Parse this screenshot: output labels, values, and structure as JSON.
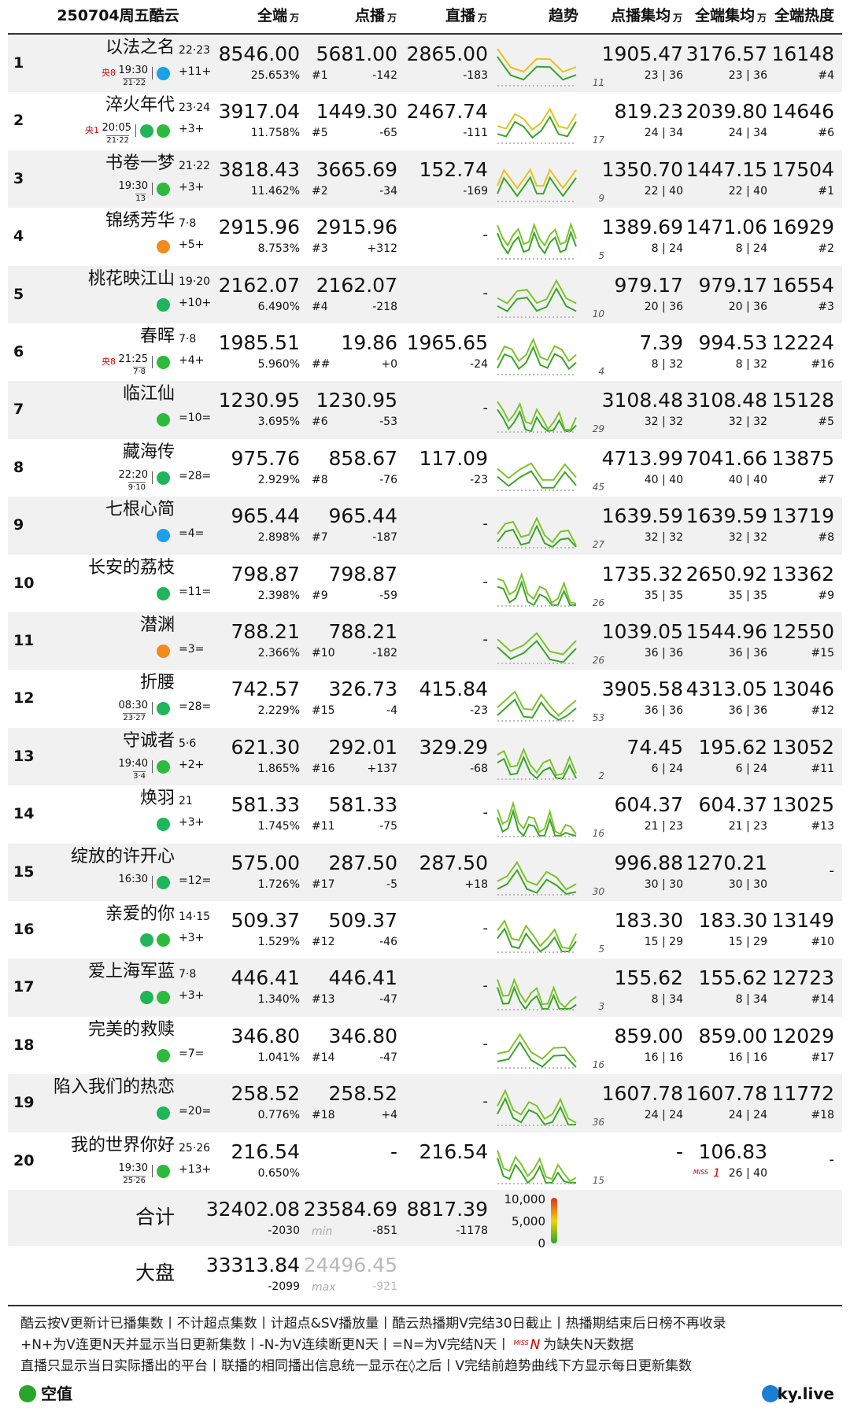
{
  "header": {
    "date": "250704周五酷云",
    "cols": [
      {
        "label": "全端",
        "unit": "万"
      },
      {
        "label": "点播",
        "unit": "万"
      },
      {
        "label": "直播",
        "unit": "万"
      },
      {
        "label": "趋势"
      },
      {
        "label": "点播集均",
        "unit": "万"
      },
      {
        "label": "全端集均",
        "unit": "万"
      },
      {
        "label": "全端热度"
      }
    ]
  },
  "rows": [
    {
      "rank": "1",
      "name": "以法之名",
      "ep": "22·23",
      "channel": "央8",
      "time": "19:30",
      "sub": "21·22",
      "update": "+11+",
      "all": "8546.00",
      "share": "25.653%",
      "vod": "5681.00",
      "vod_rank": "#1",
      "vod_chg": "-142",
      "live": "2865.00",
      "live_chg": "-183",
      "trend_n": "11",
      "vod_avg": "1905.47",
      "vod_eps": "23 | 36",
      "all_avg": "3176.57",
      "all_eps": "23 | 36",
      "heat": "16148",
      "heat_rank": "#4"
    },
    {
      "rank": "2",
      "name": "淬火年代",
      "ep": "23·24",
      "channel": "央1",
      "time": "20:05",
      "sub": "21·22",
      "update": "+3+",
      "all": "3917.04",
      "share": "11.758%",
      "vod": "1449.30",
      "vod_rank": "#5",
      "vod_chg": "-65",
      "live": "2467.74",
      "live_chg": "-111",
      "trend_n": "17",
      "vod_avg": "819.23",
      "vod_eps": "24 | 34",
      "all_avg": "2039.80",
      "all_eps": "24 | 34",
      "heat": "14646",
      "heat_rank": "#6"
    },
    {
      "rank": "3",
      "name": "书卷一梦",
      "ep": "21·22",
      "time": "19:30",
      "sub": "13",
      "update": "+3+",
      "all": "3818.43",
      "share": "11.462%",
      "vod": "3665.69",
      "vod_rank": "#2",
      "vod_chg": "-34",
      "live": "152.74",
      "live_chg": "-169",
      "trend_n": "9",
      "vod_avg": "1350.70",
      "vod_eps": "22 | 40",
      "all_avg": "1447.15",
      "all_eps": "22 | 40",
      "heat": "17504",
      "heat_rank": "#1"
    },
    {
      "rank": "4",
      "name": "锦绣芳华",
      "ep": "7·8",
      "update": "+5+",
      "all": "2915.96",
      "share": "8.753%",
      "vod": "2915.96",
      "vod_rank": "#3",
      "vod_chg": "+312",
      "live": "-",
      "trend_n": "5",
      "vod_avg": "1389.69",
      "vod_eps": "8 | 24",
      "all_avg": "1471.06",
      "all_eps": "8 | 24",
      "heat": "16929",
      "heat_rank": "#2"
    },
    {
      "rank": "5",
      "name": "桃花映江山",
      "ep": "19·20",
      "update": "+10+",
      "all": "2162.07",
      "share": "6.490%",
      "vod": "2162.07",
      "vod_rank": "#4",
      "vod_chg": "-218",
      "live": "-",
      "trend_n": "10",
      "vod_avg": "979.17",
      "vod_eps": "20 | 36",
      "all_avg": "979.17",
      "all_eps": "20 | 36",
      "heat": "16554",
      "heat_rank": "#3"
    },
    {
      "rank": "6",
      "name": "春晖",
      "ep": "7·8",
      "channel": "央8",
      "time": "21:25",
      "sub": "7·8",
      "update": "+4+",
      "all": "1985.51",
      "share": "5.960%",
      "vod": "19.86",
      "vod_rank": "##",
      "vod_chg": "+0",
      "live": "1965.65",
      "live_chg": "-24",
      "trend_n": "4",
      "vod_avg": "7.39",
      "vod_eps": "8 | 32",
      "all_avg": "994.53",
      "all_eps": "8 | 32",
      "heat": "12224",
      "heat_rank": "#16"
    },
    {
      "rank": "7",
      "name": "临江仙",
      "update": "=10=",
      "all": "1230.95",
      "share": "3.695%",
      "vod": "1230.95",
      "vod_rank": "#6",
      "vod_chg": "-53",
      "live": "-",
      "trend_n": "29",
      "vod_avg": "3108.48",
      "vod_eps": "32 | 32",
      "all_avg": "3108.48",
      "all_eps": "32 | 32",
      "heat": "15128",
      "heat_rank": "#5"
    },
    {
      "rank": "8",
      "name": "藏海传",
      "time": "22:20",
      "sub": "9·10",
      "update": "=28=",
      "all": "975.76",
      "share": "2.929%",
      "vod": "858.67",
      "vod_rank": "#8",
      "vod_chg": "-76",
      "live": "117.09",
      "live_chg": "-23",
      "trend_n": "45",
      "vod_avg": "4713.99",
      "vod_eps": "40 | 40",
      "all_avg": "7041.66",
      "all_eps": "40 | 40",
      "heat": "13875",
      "heat_rank": "#7"
    },
    {
      "rank": "9",
      "name": "七根心简",
      "update": "=4=",
      "all": "965.44",
      "share": "2.898%",
      "vod": "965.44",
      "vod_rank": "#7",
      "vod_chg": "-187",
      "live": "-",
      "trend_n": "27",
      "vod_avg": "1639.59",
      "vod_eps": "32 | 32",
      "all_avg": "1639.59",
      "all_eps": "32 | 32",
      "heat": "13719",
      "heat_rank": "#8"
    },
    {
      "rank": "10",
      "name": "长安的荔枝",
      "update": "=11=",
      "all": "798.87",
      "share": "2.398%",
      "vod": "798.87",
      "vod_rank": "#9",
      "vod_chg": "-59",
      "live": "-",
      "trend_n": "26",
      "vod_avg": "1735.32",
      "vod_eps": "35 | 35",
      "all_avg": "2650.92",
      "all_eps": "35 | 35",
      "heat": "13362",
      "heat_rank": "#9"
    },
    {
      "rank": "11",
      "name": "潜渊",
      "update": "=3=",
      "all": "788.21",
      "share": "2.366%",
      "vod": "788.21",
      "vod_rank": "#10",
      "vod_chg": "-182",
      "live": "-",
      "trend_n": "26",
      "vod_avg": "1039.05",
      "vod_eps": "36 | 36",
      "all_avg": "1544.96",
      "all_eps": "36 | 36",
      "heat": "12550",
      "heat_rank": "#15"
    },
    {
      "rank": "12",
      "name": "折腰",
      "time": "08:30",
      "sub": "23·27",
      "update": "=28=",
      "all": "742.57",
      "share": "2.229%",
      "vod": "326.73",
      "vod_rank": "#15",
      "vod_chg": "-4",
      "live": "415.84",
      "live_chg": "-23",
      "trend_n": "53",
      "vod_avg": "3905.58",
      "vod_eps": "36 | 36",
      "all_avg": "4313.05",
      "all_eps": "36 | 36",
      "heat": "13046",
      "heat_rank": "#12"
    },
    {
      "rank": "13",
      "name": "守诚者",
      "ep": "5·6",
      "time": "19:40",
      "sub": "3·4",
      "update": "+2+",
      "all": "621.30",
      "share": "1.865%",
      "vod": "292.01",
      "vod_rank": "#16",
      "vod_chg": "+137",
      "live": "329.29",
      "live_chg": "-68",
      "trend_n": "2",
      "vod_avg": "74.45",
      "vod_eps": "6 | 24",
      "all_avg": "195.62",
      "all_eps": "6 | 24",
      "heat": "13052",
      "heat_rank": "#11"
    },
    {
      "rank": "14",
      "name": "焕羽",
      "ep": "21",
      "update": "+3+",
      "all": "581.33",
      "share": "1.745%",
      "vod": "581.33",
      "vod_rank": "#11",
      "vod_chg": "-75",
      "live": "-",
      "trend_n": "16",
      "vod_avg": "604.37",
      "vod_eps": "21 | 23",
      "all_avg": "604.37",
      "all_eps": "21 | 23",
      "heat": "13025",
      "heat_rank": "#13"
    },
    {
      "rank": "15",
      "name": "绽放的许开心",
      "time": "16:30",
      "update": "=12=",
      "all": "575.00",
      "share": "1.726%",
      "vod": "287.50",
      "vod_rank": "#17",
      "vod_chg": "-5",
      "live": "287.50",
      "live_chg": "+18",
      "trend_n": "30",
      "vod_avg": "996.88",
      "vod_eps": "30 | 30",
      "all_avg": "1270.21",
      "all_eps": "30 | 30",
      "heat": "-"
    },
    {
      "rank": "16",
      "name": "亲爱的你",
      "ep": "14·15",
      "update": "+3+",
      "all": "509.37",
      "share": "1.529%",
      "vod": "509.37",
      "vod_rank": "#12",
      "vod_chg": "-46",
      "live": "-",
      "trend_n": "5",
      "vod_avg": "183.30",
      "vod_eps": "15 | 29",
      "all_avg": "183.30",
      "all_eps": "15 | 29",
      "heat": "13149",
      "heat_rank": "#10"
    },
    {
      "rank": "17",
      "name": "爱上海军蓝",
      "ep": "7·8",
      "update": "+3+",
      "all": "446.41",
      "share": "1.340%",
      "vod": "446.41",
      "vod_rank": "#13",
      "vod_chg": "-47",
      "live": "-",
      "trend_n": "3",
      "vod_avg": "155.62",
      "vod_eps": "8 | 34",
      "all_avg": "155.62",
      "all_eps": "8 | 34",
      "heat": "12723",
      "heat_rank": "#14"
    },
    {
      "rank": "18",
      "name": "完美的救赎",
      "update": "=7=",
      "all": "346.80",
      "share": "1.041%",
      "vod": "346.80",
      "vod_rank": "#14",
      "vod_chg": "-47",
      "live": "-",
      "trend_n": "16",
      "vod_avg": "859.00",
      "vod_eps": "16 | 16",
      "all_avg": "859.00",
      "all_eps": "16 | 16",
      "heat": "12029",
      "heat_rank": "#17"
    },
    {
      "rank": "19",
      "name": "陷入我们的热恋",
      "update": "=20=",
      "all": "258.52",
      "share": "0.776%",
      "vod": "258.52",
      "vod_rank": "#18",
      "vod_chg": "+4",
      "live": "-",
      "trend_n": "36",
      "vod_avg": "1607.78",
      "vod_eps": "24 | 24",
      "all_avg": "1607.78",
      "all_eps": "24 | 24",
      "heat": "11772",
      "heat_rank": "#18"
    },
    {
      "rank": "20",
      "name": "我的世界你好",
      "ep": "25·26",
      "time": "19:30",
      "sub": "25·26",
      "update": "+13+",
      "all": "216.54",
      "share": "0.650%",
      "vod": "-",
      "live": "216.54",
      "trend_n": "15",
      "vod_avg": "-",
      "all_avg": "106.83",
      "miss": "MISS",
      "miss_n": "1",
      "all_eps": "26 | 40",
      "heat": "-"
    }
  ],
  "totals": [
    {
      "label": "合计",
      "all": "32402.08",
      "all_chg": "-2030",
      "vod": "23584.69",
      "vod_note": "min",
      "vod_chg": "-851",
      "live": "8817.39",
      "live_chg": "-1178"
    },
    {
      "label": "大盘",
      "all": "33313.84",
      "all_chg": "-2099",
      "vod": "24496.45",
      "vod_note": "max",
      "vod_chg": "-921"
    }
  ],
  "legend": [
    "10,000",
    "5,000",
    "0"
  ],
  "notes": [
    "酷云按V更新计已播集数丨不计超点集数丨计超点&SV播放量丨酷云热播期V完结30日截止丨热播期结束后日榜不再收录",
    "+N+为V连更N天并显示当日更新集数丨-N-为V连续断更N天丨=N=为V完结N天丨",
    "为缺失N天数据",
    "直播只显示当日实际播出的平台丨联播的相同播出信息统一显示在◊之后丨V完结前趋势曲线下方显示每日更新集数"
  ],
  "miss_key": {
    "miss": "MISS",
    "n": "N"
  },
  "brand": {
    "left": "空值",
    "right": "ky.live"
  }
}
